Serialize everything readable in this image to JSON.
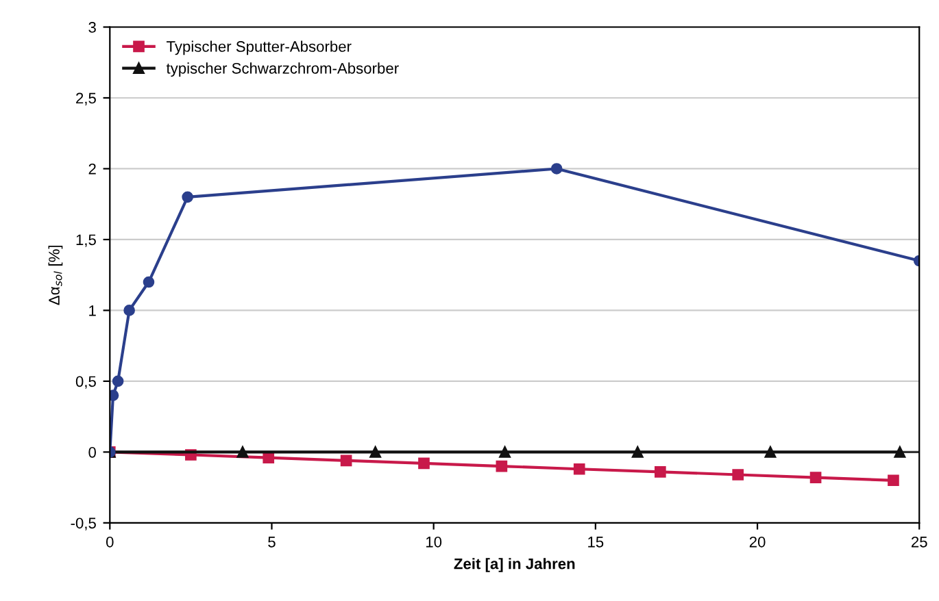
{
  "chart_data": {
    "type": "line",
    "xlabel": "Zeit [a] in Jahren",
    "ylabel": "Δα$_{sol}$ [%]",
    "xlim": [
      0,
      25
    ],
    "xticks": [
      0,
      5,
      10,
      15,
      20,
      25
    ],
    "ylim": [
      -0.5,
      3
    ],
    "yticks": [
      {
        "value": -0.5,
        "label": "-0,5"
      },
      0,
      {
        "value": 0.5,
        "label": "0,5"
      },
      1,
      {
        "value": 1.5,
        "label": "1,5"
      },
      2,
      {
        "value": 2.5,
        "label": "2,5"
      },
      3
    ],
    "grid": "y",
    "legend": "top left",
    "line_style": "solid",
    "series": [
      {
        "name": "Typischer Sputter-Absorber",
        "color": "#c8194a",
        "marker": "square",
        "x": [
          0,
          2.5,
          4.9,
          7.3,
          9.7,
          12.1,
          14.5,
          17,
          19.4,
          21.8,
          24.2
        ],
        "values": [
          0,
          -0.02,
          -0.04,
          -0.06,
          -0.08,
          -0.1,
          -0.12,
          -0.14,
          -0.16,
          -0.18,
          -0.2
        ]
      },
      {
        "name": "typischer Schwarzchrom-Absorber",
        "color": "#111111",
        "marker": "triangle",
        "x": [
          0,
          4.1,
          8.2,
          12.2,
          16.3,
          20.4,
          24.4
        ],
        "values": [
          0,
          0,
          0,
          0,
          0,
          0,
          0
        ]
      },
      {
        "color": "#2b3f8c",
        "marker": "circle",
        "x": [
          0,
          0.1,
          0.25,
          0.6,
          1.2,
          2.4,
          13.8,
          25
        ],
        "values": [
          0,
          0.4,
          0.5,
          1.0,
          1.2,
          1.8,
          2.0,
          1.35
        ]
      }
    ]
  }
}
